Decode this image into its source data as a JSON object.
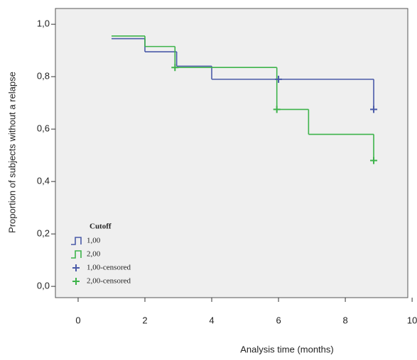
{
  "chart_data": {
    "type": "step",
    "xlabel": "Analysis time (months)",
    "ylabel": "Proportion of subjects without a relapse",
    "legend_title": "Cutoff",
    "legend": "lower left",
    "xlim": [
      -0.68,
      9.87
    ],
    "ylim": [
      -0.043,
      1.06
    ],
    "xticks": [
      0,
      2,
      4,
      6,
      8,
      10
    ],
    "yticks": [
      {
        "value": 0,
        "label": "0,0"
      },
      {
        "value": 0.2,
        "label": "0,2"
      },
      {
        "value": 0.4,
        "label": "0,4"
      },
      {
        "value": 0.6,
        "label": "0,6"
      },
      {
        "value": 0.8,
        "label": "0,8"
      },
      {
        "value": 1,
        "label": "1,0"
      }
    ],
    "series": [
      {
        "name": "1,00",
        "color": "#4a5aa8",
        "x": [
          1,
          2,
          2.95,
          4,
          8.85
        ],
        "values": [
          0.945,
          0.895,
          0.84,
          0.79,
          0.675
        ]
      },
      {
        "name": "2,00",
        "color": "#3db34a",
        "x": [
          1,
          2,
          2.9,
          5.95,
          6.9,
          8.85
        ],
        "values": [
          0.955,
          0.915,
          0.835,
          0.675,
          0.58,
          0.48
        ]
      },
      {
        "name": "1,00-censored",
        "color": "#4a5aa8",
        "censored": true,
        "x": [
          6,
          8.85
        ],
        "values": [
          0.79,
          0.675
        ]
      },
      {
        "name": "2,00-censored",
        "color": "#3db34a",
        "censored": true,
        "x": [
          2.9,
          5.95,
          8.85
        ],
        "values": [
          0.835,
          0.675,
          0.48
        ]
      }
    ]
  }
}
